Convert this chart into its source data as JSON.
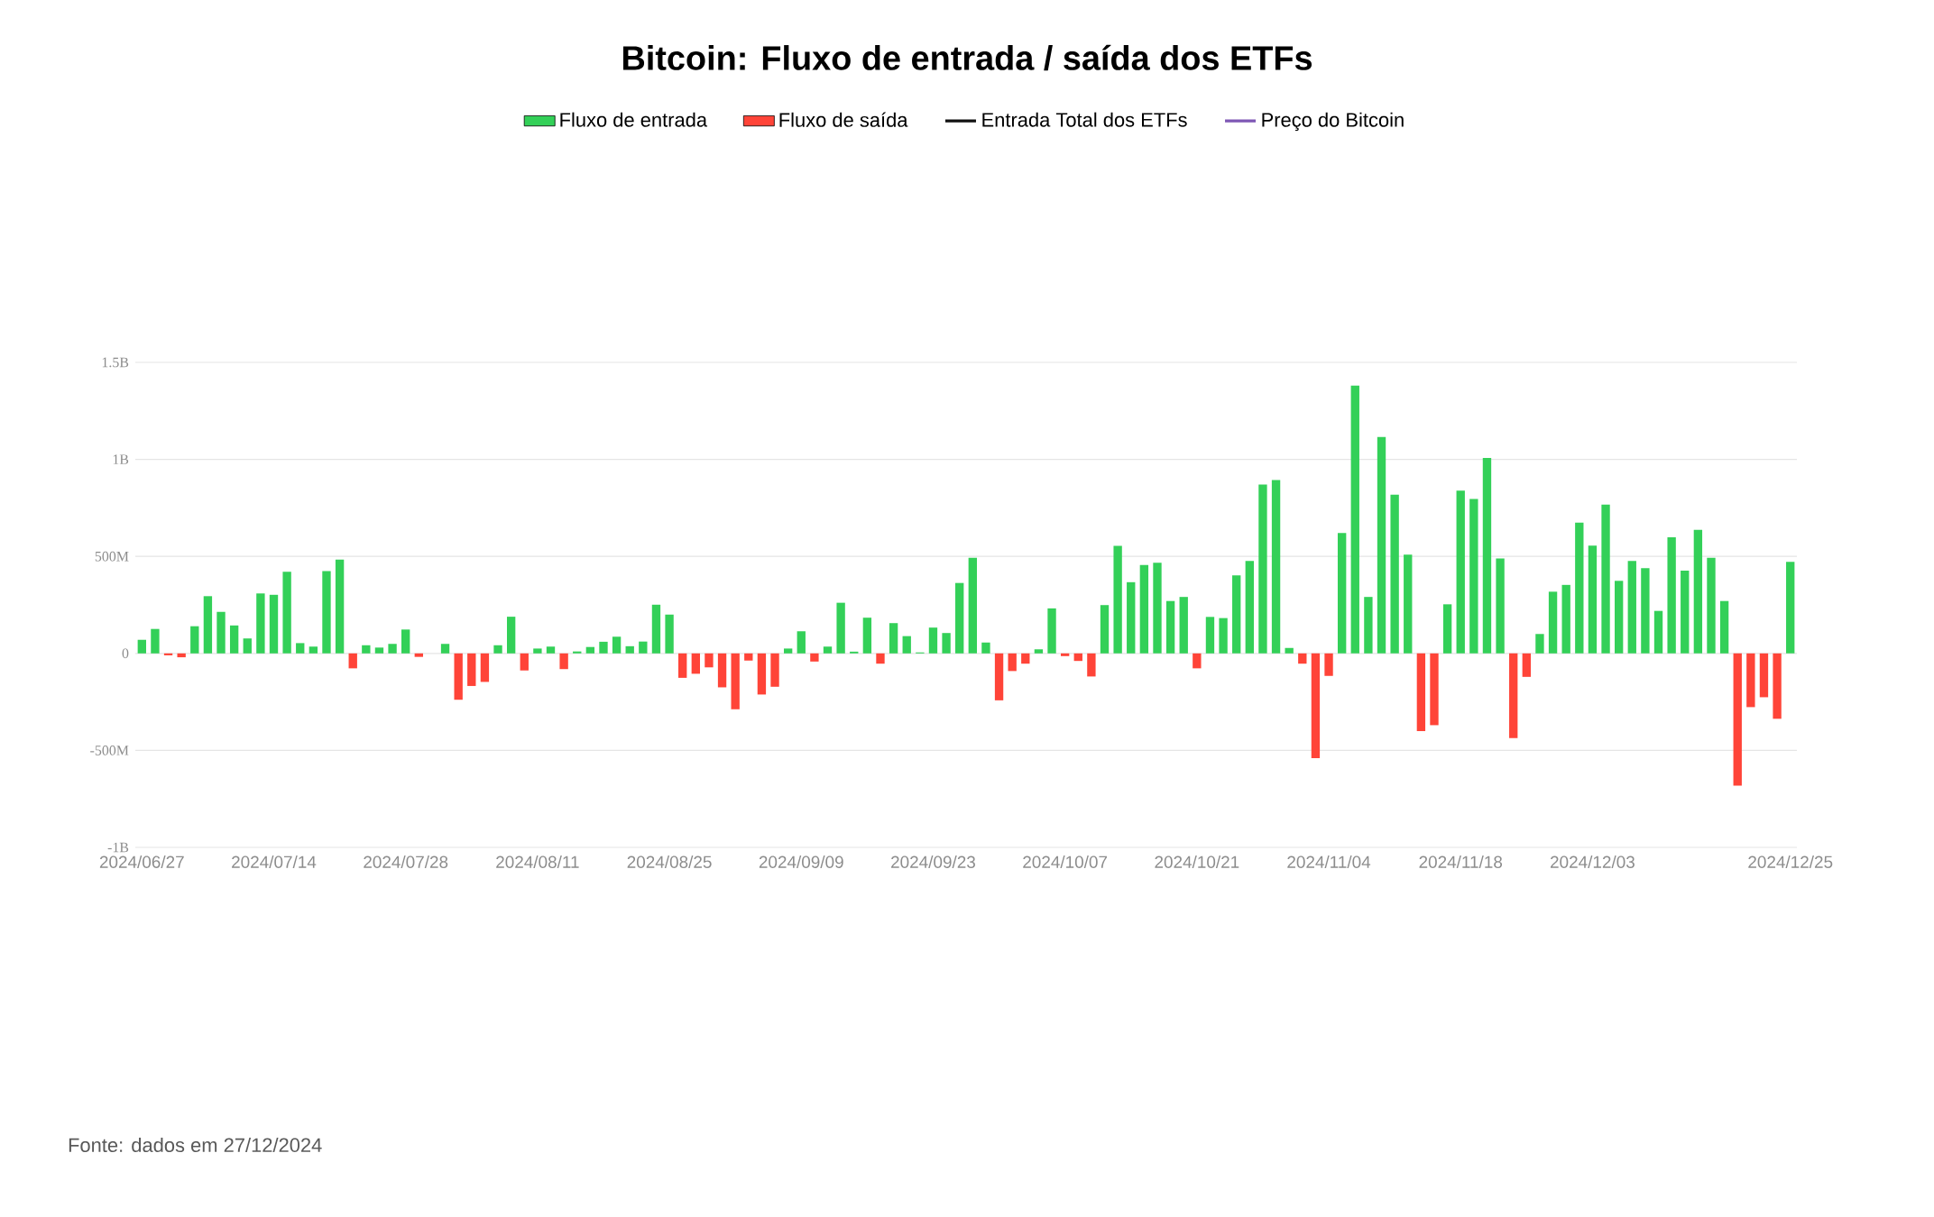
{
  "chart_data": {
    "type": "bar",
    "title": "Bitcoin: Fluxo de entrada / saída dos ETFs",
    "categories": [
      "2024/06/27",
      null,
      null,
      null,
      null,
      null,
      null,
      null,
      null,
      null,
      "2024/07/14",
      null,
      null,
      null,
      null,
      null,
      null,
      null,
      null,
      null,
      "2024/07/28",
      null,
      null,
      null,
      null,
      null,
      null,
      null,
      null,
      null,
      "2024/08/11",
      null,
      null,
      null,
      null,
      null,
      null,
      null,
      null,
      null,
      "2024/08/25",
      null,
      null,
      null,
      null,
      null,
      null,
      null,
      null,
      null,
      "2024/09/09",
      null,
      null,
      null,
      null,
      null,
      null,
      null,
      null,
      null,
      "2024/09/23",
      null,
      null,
      null,
      null,
      null,
      null,
      null,
      null,
      null,
      "2024/10/07",
      null,
      null,
      null,
      null,
      null,
      null,
      null,
      null,
      null,
      "2024/10/21",
      null,
      null,
      null,
      null,
      null,
      null,
      null,
      null,
      null,
      "2024/11/04",
      null,
      null,
      null,
      null,
      null,
      null,
      null,
      null,
      null,
      "2024/11/18",
      null,
      null,
      null,
      null,
      null,
      null,
      null,
      null,
      null,
      "2024/12/03",
      null,
      null,
      null,
      null,
      null,
      null,
      null,
      null,
      null,
      null,
      null,
      null,
      null,
      null,
      "2024/12/25"
    ],
    "series": [
      {
        "name": "Fluxo de entrada",
        "color": "#33d058",
        "values": [
          70000000.0,
          126000000.0,
          null,
          null,
          140000000.0,
          295000000.0,
          214000000.0,
          144000000.0,
          77000000.0,
          309000000.0,
          302000000.0,
          421000000.0,
          53000000.0,
          35000000.0,
          424000000.0,
          484000000.0,
          null,
          42000000.0,
          30000000.0,
          49000000.0,
          123000000.0,
          null,
          null,
          49000000.0,
          null,
          null,
          null,
          42000000.0,
          189000000.0,
          null,
          25000000.0,
          35000000.0,
          null,
          10000000.0,
          33000000.0,
          60000000.0,
          86000000.0,
          37000000.0,
          61000000.0,
          251000000.0,
          200000000.0,
          null,
          null,
          null,
          null,
          null,
          null,
          null,
          null,
          25000000.0,
          114000000.0,
          null,
          35000000.0,
          261000000.0,
          9000000.0,
          184000000.0,
          null,
          156000000.0,
          89000000.0,
          5000000.0,
          133000000.0,
          105000000.0,
          363000000.0,
          493000000.0,
          56000000.0,
          null,
          null,
          null,
          21000000.0,
          232000000.0,
          null,
          null,
          null,
          249000000.0,
          554000000.0,
          367000000.0,
          456000000.0,
          467000000.0,
          270000000.0,
          291000000.0,
          null,
          188000000.0,
          182000000.0,
          402000000.0,
          477000000.0,
          870000000.0,
          893000000.0,
          28000000.0,
          null,
          null,
          null,
          621000000.0,
          1380000000.0,
          291000000.0,
          1116000000.0,
          818000000.0,
          509000000.0,
          null,
          null,
          253000000.0,
          839000000.0,
          796000000.0,
          1007000000.0,
          489000000.0,
          null,
          null,
          100000000.0,
          318000000.0,
          353000000.0,
          674000000.0,
          556000000.0,
          767000000.0,
          374000000.0,
          477000000.0,
          439000000.0,
          219000000.0,
          598000000.0,
          426000000.0,
          637000000.0,
          493000000.0,
          270000000.0,
          null,
          null,
          null,
          null,
          472000000.0
        ]
      },
      {
        "name": "Fluxo de saída",
        "color": "#ff4438",
        "values": [
          null,
          null,
          -10000000.0,
          -20000000.0,
          null,
          null,
          null,
          null,
          null,
          null,
          null,
          null,
          null,
          null,
          null,
          null,
          -77000000.0,
          null,
          null,
          null,
          null,
          -18000000.0,
          null,
          null,
          -239000000.0,
          -168000000.0,
          -147000000.0,
          null,
          null,
          -88000000.0,
          null,
          null,
          -81000000.0,
          null,
          null,
          null,
          null,
          null,
          null,
          null,
          null,
          -126000000.0,
          -105000000.0,
          -72000000.0,
          -175000000.0,
          -288000000.0,
          -37000000.0,
          -212000000.0,
          -172000000.0,
          null,
          null,
          -42000000.0,
          null,
          null,
          null,
          null,
          -53000000.0,
          null,
          null,
          null,
          null,
          null,
          null,
          null,
          null,
          -242000000.0,
          -91000000.0,
          -53000000.0,
          null,
          null,
          -14000000.0,
          -39000000.0,
          -119000000.0,
          null,
          null,
          null,
          null,
          null,
          null,
          null,
          -77000000.0,
          null,
          null,
          null,
          null,
          null,
          null,
          null,
          -53000000.0,
          -540000000.0,
          -116000000.0,
          null,
          null,
          null,
          null,
          null,
          null,
          -400000000.0,
          -370000000.0,
          null,
          null,
          null,
          null,
          null,
          -437000000.0,
          -121000000.0,
          null,
          null,
          null,
          null,
          null,
          null,
          null,
          null,
          null,
          null,
          null,
          null,
          null,
          null,
          null,
          -682000000.0,
          -277000000.0,
          -226000000.0,
          -337000000.0,
          null
        ]
      },
      {
        "name": "Entrada Total dos ETFs",
        "type": "line",
        "color": "#111111",
        "values": [
          null,
          null,
          null,
          null,
          null,
          null,
          null,
          null,
          null,
          null,
          null,
          null,
          null,
          null,
          null,
          null,
          null,
          null,
          null,
          null,
          null,
          null,
          null,
          null,
          null,
          null,
          null,
          null,
          null,
          null,
          null,
          null,
          null,
          null,
          null,
          null,
          null,
          null,
          null,
          null,
          null,
          null,
          null,
          null,
          null,
          null,
          null,
          null,
          null,
          null,
          null,
          null,
          null,
          null,
          null,
          null,
          null,
          null,
          null,
          null,
          null,
          null,
          null,
          null,
          null,
          null,
          null,
          null,
          null,
          null,
          null,
          null,
          null,
          null,
          null,
          null,
          null,
          null,
          null,
          null,
          null,
          null,
          null,
          null,
          null,
          null,
          null,
          null,
          null,
          null,
          null,
          null,
          null,
          null,
          null,
          null,
          null,
          null,
          null,
          null,
          null,
          null,
          null,
          null,
          null,
          null,
          null,
          null,
          null,
          null,
          null,
          null,
          null,
          null,
          null,
          null,
          null,
          null,
          null,
          null,
          null,
          null,
          null,
          null,
          null,
          null
        ]
      },
      {
        "name": "Preço do Bitcoin",
        "type": "line",
        "color": "#7e57b5",
        "values": [
          null,
          null,
          null,
          null,
          null,
          null,
          null,
          null,
          null,
          null,
          null,
          null,
          null,
          null,
          null,
          null,
          null,
          null,
          null,
          null,
          null,
          null,
          null,
          null,
          null,
          null,
          null,
          null,
          null,
          null,
          null,
          null,
          null,
          null,
          null,
          null,
          null,
          null,
          null,
          null,
          null,
          null,
          null,
          null,
          null,
          null,
          null,
          null,
          null,
          null,
          null,
          null,
          null,
          null,
          null,
          null,
          null,
          null,
          null,
          null,
          null,
          null,
          null,
          null,
          null,
          null,
          null,
          null,
          null,
          null,
          null,
          null,
          null,
          null,
          null,
          null,
          null,
          null,
          null,
          null,
          null,
          null,
          null,
          null,
          null,
          null,
          null,
          null,
          null,
          null,
          null,
          null,
          null,
          null,
          null,
          null,
          null,
          null,
          null,
          null,
          null,
          null,
          null,
          null,
          null,
          null,
          null,
          null,
          null,
          null,
          null,
          null,
          null,
          null,
          null,
          null,
          null,
          null,
          null,
          null,
          null,
          null,
          null,
          null,
          null,
          null
        ]
      }
    ],
    "ylim": [
      -1000000000,
      1500000000
    ],
    "yticks": [
      {
        "value": -1000000000,
        "label": "-1B"
      },
      {
        "value": -500000000,
        "label": "-500M"
      },
      {
        "value": 0,
        "label": "0"
      },
      {
        "value": 500000000,
        "label": "500M"
      },
      {
        "value": 1000000000,
        "label": "1B"
      },
      {
        "value": 1500000000,
        "label": "1.5B"
      }
    ],
    "grid": "y",
    "legend": "top",
    "annotations": [
      "Fonte: dados em 27/12/2024"
    ]
  }
}
